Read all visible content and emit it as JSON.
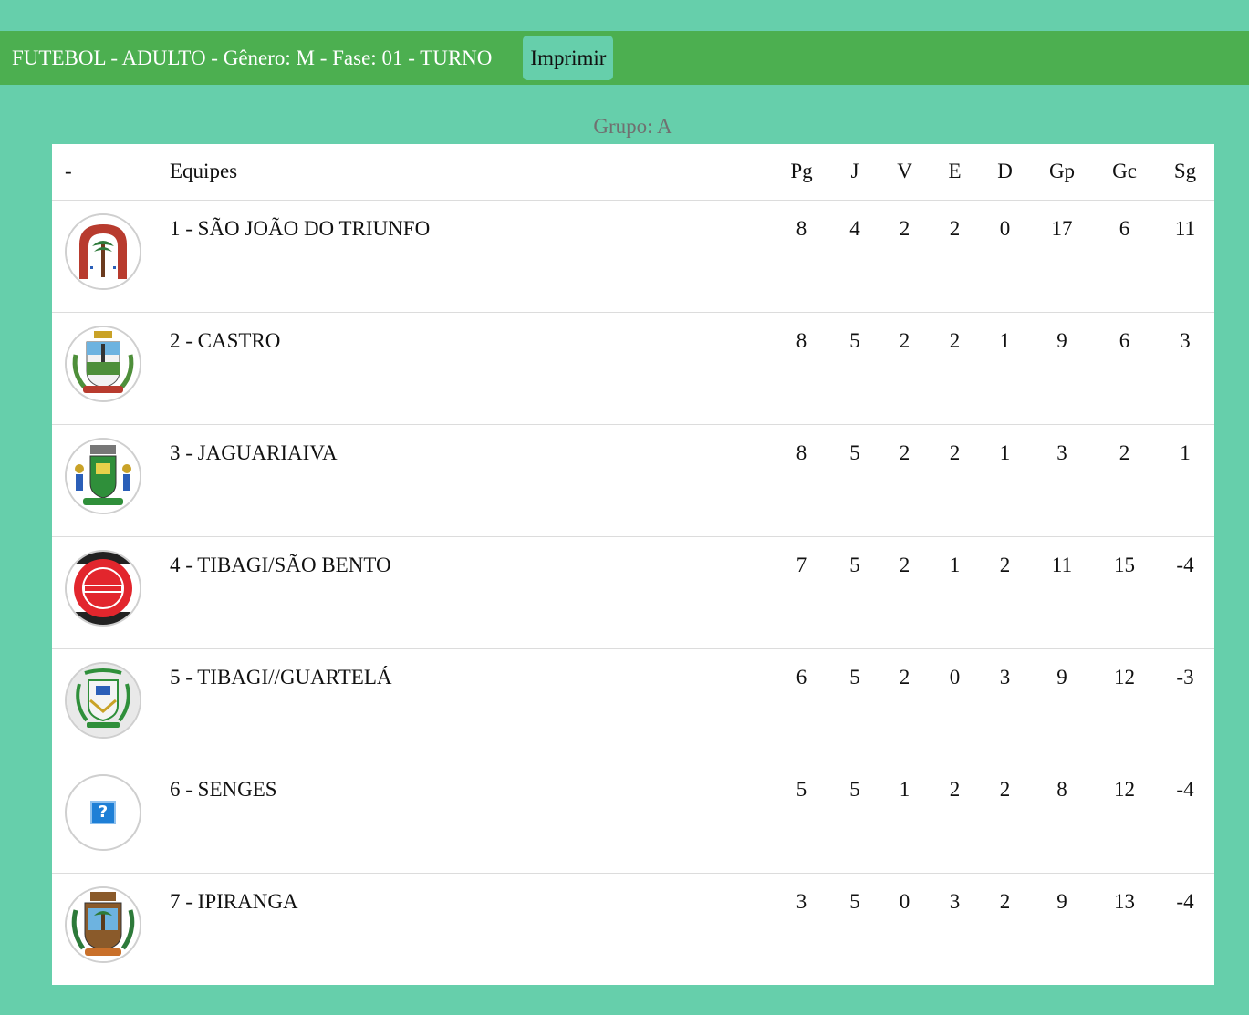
{
  "header": {
    "title": "FUTEBOL - ADULTO - Gênero: M - Fase: 01 - TURNO",
    "print_label": "Imprimir"
  },
  "group": {
    "label": "Grupo: A"
  },
  "table": {
    "columns": [
      "-",
      "Equipes",
      "Pg",
      "J",
      "V",
      "E",
      "D",
      "Gp",
      "Gc",
      "Sg"
    ],
    "rows": [
      {
        "team": "1 - SÃO JOÃO DO TRIUNFO",
        "logo_icon": "sao-joao-do-triunfo-crest-icon",
        "pg": "8",
        "j": "4",
        "v": "2",
        "e": "2",
        "d": "0",
        "gp": "17",
        "gc": "6",
        "sg": "11"
      },
      {
        "team": "2 - CASTRO",
        "logo_icon": "castro-crest-icon",
        "pg": "8",
        "j": "5",
        "v": "2",
        "e": "2",
        "d": "1",
        "gp": "9",
        "gc": "6",
        "sg": "3"
      },
      {
        "team": "3 - JAGUARIAIVA",
        "logo_icon": "jaguariaiva-crest-icon",
        "pg": "8",
        "j": "5",
        "v": "2",
        "e": "2",
        "d": "1",
        "gp": "3",
        "gc": "2",
        "sg": "1"
      },
      {
        "team": "4 - TIBAGI/SÃO BENTO",
        "logo_icon": "sao-bento-fc-badge-icon",
        "pg": "7",
        "j": "5",
        "v": "2",
        "e": "1",
        "d": "2",
        "gp": "11",
        "gc": "15",
        "sg": "-4"
      },
      {
        "team": "5 - TIBAGI//GUARTELÁ",
        "logo_icon": "tibagi-crest-icon",
        "pg": "6",
        "j": "5",
        "v": "2",
        "e": "0",
        "d": "3",
        "gp": "9",
        "gc": "12",
        "sg": "-3"
      },
      {
        "team": "6 - SENGES",
        "logo_icon": "missing-image-icon",
        "pg": "5",
        "j": "5",
        "v": "1",
        "e": "2",
        "d": "2",
        "gp": "8",
        "gc": "12",
        "sg": "-4"
      },
      {
        "team": "7 - IPIRANGA",
        "logo_icon": "ipiranga-crest-icon",
        "pg": "3",
        "j": "5",
        "v": "0",
        "e": "3",
        "d": "2",
        "gp": "9",
        "gc": "13",
        "sg": "-4"
      }
    ]
  },
  "colors": {
    "page_background": "#66cfab",
    "header_bar": "#4caf50",
    "print_button": "#66cfab",
    "group_title": "#707070"
  }
}
